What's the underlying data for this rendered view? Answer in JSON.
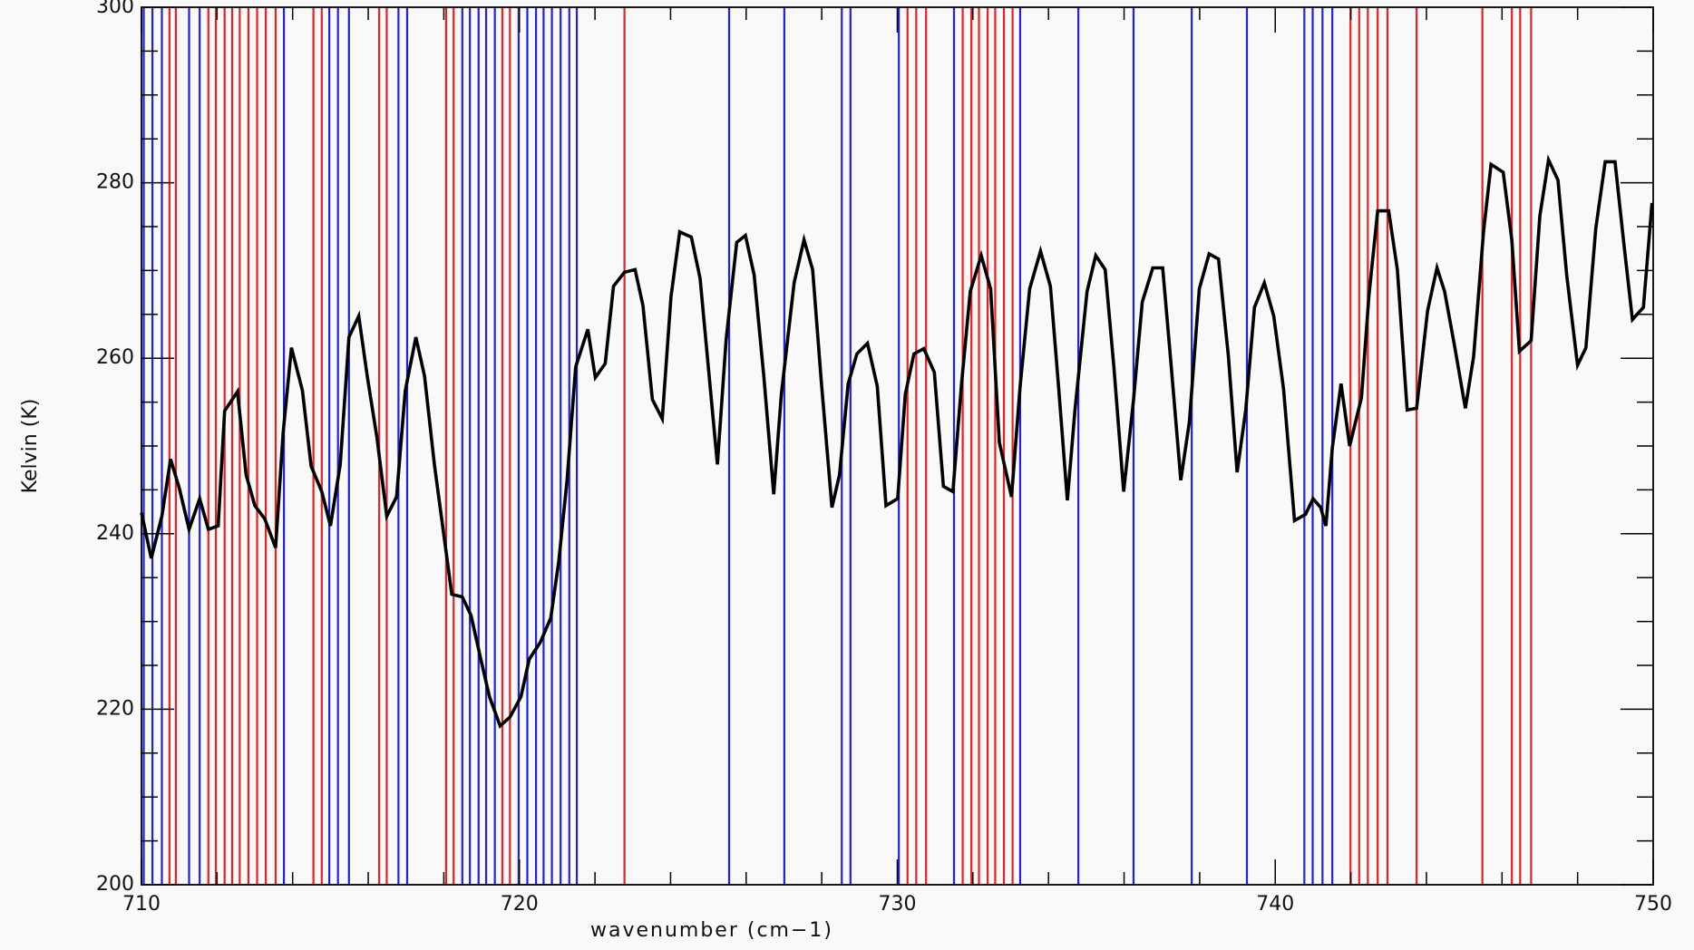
{
  "chart_data": {
    "type": "line",
    "xlabel": "wavenumber (cm−1)",
    "ylabel": "Kelvin (K)",
    "xlim": [
      710,
      750
    ],
    "ylim": [
      200,
      300
    ],
    "xticks": [
      710,
      720,
      730,
      740,
      750
    ],
    "yticks": [
      200,
      220,
      240,
      260,
      280,
      300
    ],
    "minor_ticks": {
      "x": 5,
      "y": 4
    },
    "x": [
      710,
      710.26,
      710.54,
      710.77,
      711.0,
      711.26,
      711.54,
      711.77,
      712.03,
      712.2,
      712.54,
      712.77,
      713.0,
      713.26,
      713.55,
      713.75,
      713.97,
      714.26,
      714.49,
      714.77,
      715.0,
      715.26,
      715.49,
      715.75,
      715.98,
      716.23,
      716.49,
      716.75,
      716.98,
      717.26,
      717.49,
      717.75,
      717.98,
      718.21,
      718.49,
      718.72,
      718.98,
      719.21,
      719.49,
      719.75,
      720.04,
      720.26,
      720.55,
      720.83,
      721.04,
      721.26,
      721.49,
      721.81,
      722.01,
      722.27,
      722.49,
      722.78,
      723.06,
      723.27,
      723.52,
      723.78,
      724.01,
      724.24,
      724.55,
      724.78,
      725.04,
      725.24,
      725.47,
      725.75,
      725.98,
      726.21,
      726.47,
      726.73,
      726.93,
      727.27,
      727.53,
      727.76,
      727.98,
      728.27,
      728.47,
      728.7,
      728.93,
      729.21,
      729.47,
      729.7,
      730.01,
      730.21,
      730.44,
      730.7,
      730.98,
      731.22,
      731.47,
      731.7,
      731.93,
      732.22,
      732.47,
      732.7,
      733.02,
      733.25,
      733.5,
      733.79,
      734.05,
      734.27,
      734.5,
      734.7,
      735.02,
      735.25,
      735.5,
      735.73,
      735.99,
      736.25,
      736.48,
      736.76,
      737.02,
      737.25,
      737.5,
      737.73,
      737.99,
      738.25,
      738.5,
      738.76,
      738.99,
      739.22,
      739.45,
      739.71,
      739.96,
      740.22,
      740.51,
      740.8,
      741.0,
      741.2,
      741.34,
      741.51,
      741.74,
      741.97,
      742.28,
      742.48,
      742.71,
      743.0,
      743.23,
      743.49,
      743.74,
      744.03,
      744.28,
      744.48,
      744.74,
      745.03,
      745.25,
      745.51,
      745.71,
      746.03,
      746.26,
      746.46,
      746.77,
      747.0,
      747.23,
      747.48,
      747.71,
      748.0,
      748.22,
      748.48,
      748.73,
      748.99,
      749.22,
      749.45,
      749.74,
      749.97
    ],
    "series": [
      {
        "color": "#000000",
        "values": [
          242.4,
          237.2,
          242,
          248.5,
          245.2,
          240.5,
          244,
          240.5,
          240.9,
          254,
          256.2,
          246.7,
          243.2,
          241.7,
          238.4,
          251.6,
          261.2,
          256.3,
          247.7,
          244.8,
          240.9,
          247.9,
          262.4,
          264.8,
          257.8,
          251,
          242,
          244.2,
          256.3,
          262.4,
          258,
          247.9,
          240.5,
          233.1,
          232.8,
          230.7,
          225.7,
          221.4,
          218.1,
          219.1,
          221.4,
          225.7,
          227.6,
          230.4,
          236.8,
          246.1,
          259,
          263.3,
          257.8,
          259.4,
          268.2,
          269.8,
          270.1,
          266,
          255.3,
          253.1,
          267,
          274.4,
          273.8,
          269.1,
          257.1,
          247.9,
          262.1,
          273.2,
          274,
          269.5,
          257.8,
          244.5,
          255.9,
          268.6,
          273.5,
          270.1,
          257.8,
          243,
          246.7,
          257.1,
          260.5,
          261.7,
          256.8,
          243.2,
          244,
          255.9,
          260.5,
          261.1,
          258.4,
          245.4,
          244.8,
          257.1,
          267.6,
          271.7,
          267.9,
          250.4,
          244.2,
          256.8,
          267.9,
          272.2,
          268.2,
          256.5,
          243.8,
          254.1,
          267.6,
          271.7,
          270.1,
          259,
          244.8,
          255.3,
          266.4,
          270.3,
          270.3,
          259,
          246.1,
          252.8,
          267.9,
          271.9,
          271.3,
          260.2,
          247,
          254.1,
          265.8,
          268.6,
          264.8,
          256.5,
          241.5,
          242.2,
          244,
          243,
          240.9,
          249.8,
          257.1,
          250,
          255.5,
          267.2,
          276.8,
          276.8,
          270.1,
          254.1,
          254.3,
          265.4,
          270.3,
          267.6,
          261.5,
          254.3,
          260.2,
          274.4,
          282.1,
          281.2,
          273.5,
          260.8,
          262,
          276.2,
          282.6,
          280.3,
          269.5,
          259.2,
          261.2,
          274.8,
          282.4,
          282.4,
          273.2,
          264.4,
          265.8,
          277.7
        ]
      }
    ],
    "vlines": [
      {
        "color": "#e82020",
        "x": [
          710.74,
          710.91,
          711.77,
          711.97,
          712.2,
          712.4,
          712.6,
          712.83,
          713.06,
          713.29,
          713.55,
          714.55,
          714.77,
          716.29,
          716.49,
          718.06,
          718.26,
          719.55,
          719.75,
          722.78,
          730.27,
          730.5,
          730.76,
          731.73,
          731.96,
          732.16,
          732.39,
          732.59,
          732.82,
          733.05,
          741.99,
          742.22,
          742.45,
          742.71,
          742.97,
          743.74,
          745.48,
          746.26,
          746.48,
          746.77
        ]
      },
      {
        "color": "#2020e0",
        "x": [
          710.06,
          710.29,
          710.54,
          711.26,
          711.54,
          713.77,
          714.97,
          715.2,
          715.49,
          716.8,
          717.03,
          718.49,
          718.69,
          718.92,
          719.12,
          719.35,
          719.98,
          720.21,
          720.44,
          720.64,
          720.86,
          721.09,
          721.32,
          721.52,
          725.55,
          727.01,
          728.53,
          728.76,
          730.04,
          731.5,
          733.25,
          734.79,
          736.25,
          737.79,
          739.25,
          740.77,
          740.99,
          741.25,
          741.51
        ]
      }
    ]
  }
}
